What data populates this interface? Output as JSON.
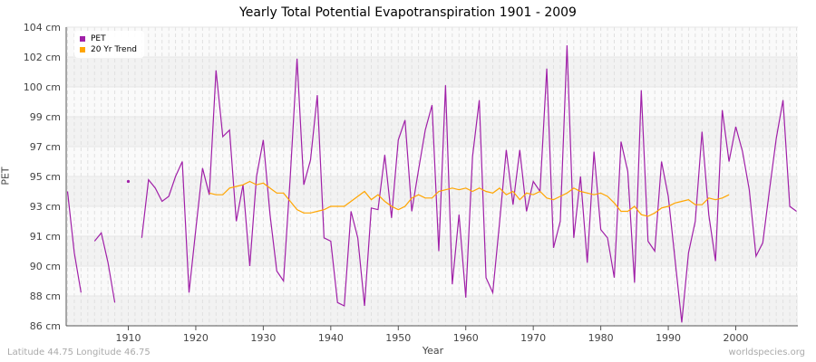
{
  "title": "Yearly Total Potential Evapotranspiration 1901 - 2009",
  "footer": {
    "left": "Latitude 44.75 Longitude 46.75",
    "right": "worldspecies.org"
  },
  "chart_data": {
    "type": "line",
    "title": "Yearly Total Potential Evapotranspiration 1901 - 2009",
    "xlabel": "Year",
    "ylabel": "PET",
    "xlim": [
      1901,
      2009
    ],
    "ylim": [
      86,
      104
    ],
    "grid": true,
    "legend_placement": "top-left",
    "x_ticks": [
      1910,
      1920,
      1930,
      1940,
      1950,
      1960,
      1970,
      1980,
      1990,
      2000
    ],
    "y_ticks": [
      {
        "value": 86,
        "label": "86 cm"
      },
      {
        "value": 87.8,
        "label": "88 cm"
      },
      {
        "value": 89.6,
        "label": "90 cm"
      },
      {
        "value": 91.4,
        "label": "91 cm"
      },
      {
        "value": 93.2,
        "label": "93 cm"
      },
      {
        "value": 95,
        "label": "95 cm"
      },
      {
        "value": 96.8,
        "label": "97 cm"
      },
      {
        "value": 98.6,
        "label": "99 cm"
      },
      {
        "value": 100.4,
        "label": "100 cm"
      },
      {
        "value": 102.2,
        "label": "102 cm"
      },
      {
        "value": 104,
        "label": "104 cm"
      }
    ],
    "series": [
      {
        "name": "PET",
        "color": "#a020a8",
        "start_year": 1901,
        "values": [
          94.1,
          90.4,
          88.0,
          null,
          91.1,
          91.6,
          89.8,
          87.4,
          null,
          94.7,
          null,
          91.3,
          94.8,
          94.3,
          93.5,
          93.8,
          95.0,
          95.9,
          88.0,
          91.8,
          95.5,
          93.9,
          101.4,
          97.4,
          97.8,
          92.3,
          94.5,
          89.6,
          95.0,
          97.2,
          92.7,
          89.3,
          88.7,
          95.0,
          102.1,
          94.5,
          96.0,
          99.9,
          91.3,
          91.1,
          87.4,
          87.2,
          92.9,
          91.3,
          87.2,
          93.1,
          93.0,
          96.3,
          92.5,
          97.2,
          98.4,
          92.9,
          95.4,
          97.8,
          99.3,
          90.5,
          100.5,
          88.5,
          92.7,
          87.7,
          96.2,
          99.6,
          88.9,
          88.0,
          92.2,
          96.6,
          93.3,
          96.6,
          92.9,
          94.7,
          94.1,
          101.5,
          90.7,
          92.3,
          102.9,
          91.3,
          95.0,
          89.8,
          96.5,
          91.8,
          91.3,
          88.9,
          97.1,
          95.3,
          88.6,
          100.2,
          91.1,
          90.5,
          95.9,
          93.8,
          90.0,
          86.2,
          90.4,
          92.3,
          97.7,
          92.7,
          89.9,
          99.0,
          95.9,
          98.0,
          96.5,
          94.2,
          90.2,
          91.0,
          94.2,
          97.3,
          99.6,
          93.2,
          92.9
        ]
      },
      {
        "name": "20 Yr Trend",
        "color": "#ffa500",
        "start_year": 1922,
        "values": [
          94.0,
          93.9,
          93.9,
          94.3,
          94.4,
          94.5,
          94.7,
          94.5,
          94.6,
          94.3,
          94.0,
          94.0,
          93.5,
          93.0,
          92.8,
          92.8,
          92.9,
          93.0,
          93.2,
          93.2,
          93.2,
          93.5,
          93.8,
          94.1,
          93.6,
          93.9,
          93.5,
          93.2,
          93.0,
          93.2,
          93.7,
          93.9,
          93.7,
          93.7,
          94.1,
          94.2,
          94.3,
          94.2,
          94.3,
          94.1,
          94.3,
          94.1,
          94.0,
          94.3,
          93.9,
          94.1,
          93.6,
          94.0,
          93.9,
          94.1,
          93.7,
          93.6,
          93.8,
          94.0,
          94.3,
          94.1,
          94.0,
          93.9,
          94.0,
          93.8,
          93.4,
          92.9,
          92.9,
          93.2,
          92.7,
          92.6,
          92.8,
          93.1,
          93.2,
          93.4,
          93.5,
          93.6,
          93.3,
          93.3,
          93.7,
          93.6,
          93.7,
          93.9
        ]
      }
    ]
  }
}
